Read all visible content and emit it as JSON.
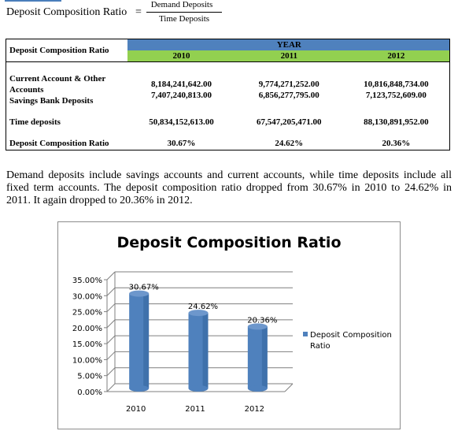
{
  "formula": {
    "lhs": "Deposit Composition Ratio",
    "equals": "=",
    "numerator": "Demand Deposits",
    "denominator": "Time Deposits"
  },
  "table": {
    "corner_label": "Deposit Composition Ratio",
    "year_header": "YEAR",
    "years": [
      "2010",
      "2011",
      "2012"
    ],
    "rows": [
      {
        "label_lines": [
          "Current Account & Other",
          "Accounts"
        ],
        "values": [
          "8,184,241,642.00",
          "9,774,271,252.00",
          "10,816,848,734.00"
        ]
      },
      {
        "label_lines": [
          "Savings Bank Deposits"
        ],
        "values": [
          "7,407,240,813.00",
          "6,856,277,795.00",
          "7,123,752,609.00"
        ]
      },
      {
        "label_lines": [
          "Time deposits"
        ],
        "values": [
          "50,834,152,613.00",
          "67,547,205,471.00",
          "88,130,891,952.00"
        ]
      },
      {
        "label_lines": [
          "Deposit Composition Ratio"
        ],
        "values": [
          "30.67%",
          "24.62%",
          "20.36%"
        ]
      }
    ]
  },
  "paragraph": "Demand deposits include savings accounts and current accounts, while time deposits include all fixed term accounts. The deposit composition ratio dropped from 30.67% in 2010 to 24.62% in 2011. It again dropped to 20.36% in 2012.",
  "colors": {
    "bar": "#4f81bd",
    "bar_dark": "#2c5d94",
    "year_header": "#4f81bd",
    "year_row": "#92d050"
  },
  "chart_data": {
    "type": "bar",
    "title": "Deposit Composition Ratio",
    "categories": [
      "2010",
      "2011",
      "2012"
    ],
    "series": [
      {
        "name": "Deposit Composition Ratio",
        "values": [
          30.67,
          24.62,
          20.36
        ]
      }
    ],
    "data_labels": [
      "30.67%",
      "24.62%",
      "20.36%"
    ],
    "y_ticks": [
      "0.00%",
      "5.00%",
      "10.00%",
      "15.00%",
      "20.00%",
      "25.00%",
      "30.00%",
      "35.00%"
    ],
    "ylim": [
      0,
      35
    ],
    "grid": true,
    "legend_position": "right",
    "style": "3d-cylinder"
  }
}
